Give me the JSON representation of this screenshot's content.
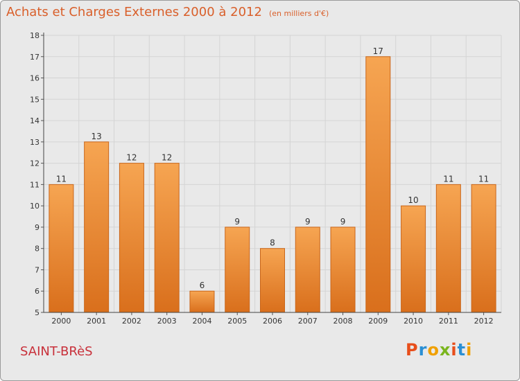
{
  "header": {
    "title": "Achats et Charges Externes 2000 à 2012",
    "subtitle": "(en milliers d'€)"
  },
  "footer": {
    "commune": "SAINT-BRèS",
    "logo_text": "Proxiti"
  },
  "colors": {
    "title": "#d95f2a",
    "commune": "#c8303a",
    "bar_top": "#f6a552",
    "bar_bottom": "#d96f1c",
    "background": "#e9e9e9",
    "logo_letters": [
      "#e84e1b",
      "#2a8fd4",
      "#f0a000",
      "#7ab51d",
      "#e84e1b",
      "#2a8fd4",
      "#f0a000"
    ]
  },
  "chart_data": {
    "type": "bar",
    "title": "Achats et Charges Externes 2000 à 2012",
    "subtitle": "(en milliers d'€)",
    "categories": [
      "2000",
      "2001",
      "2002",
      "2003",
      "2004",
      "2005",
      "2006",
      "2007",
      "2008",
      "2009",
      "2010",
      "2011",
      "2012"
    ],
    "values": [
      11,
      13,
      12,
      12,
      6,
      9,
      8,
      9,
      9,
      17,
      10,
      11,
      11
    ],
    "ylim": [
      5,
      18
    ],
    "yticks": [
      5,
      6,
      7,
      8,
      9,
      10,
      11,
      12,
      13,
      14,
      15,
      16,
      17,
      18
    ],
    "grid": true,
    "data_labels": true
  }
}
